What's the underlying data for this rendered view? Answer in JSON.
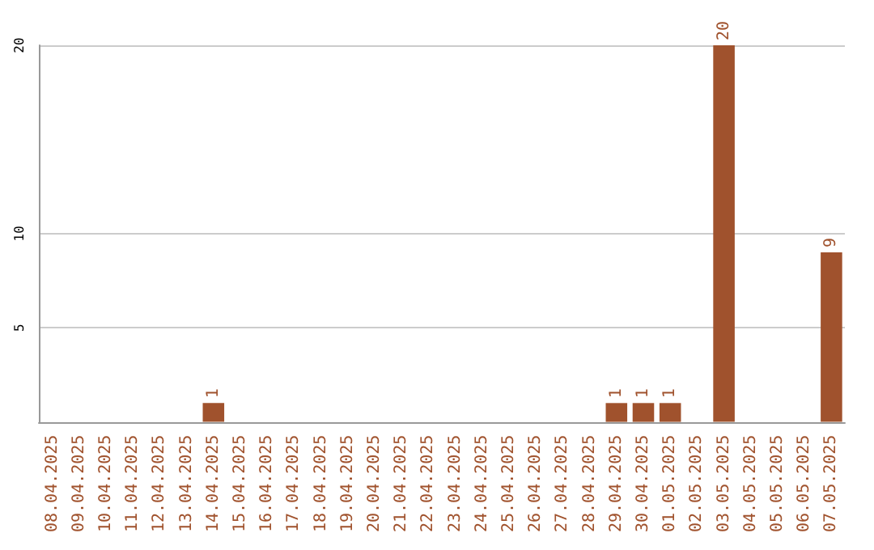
{
  "chart_data": {
    "type": "bar",
    "categories": [
      "08.04.2025",
      "09.04.2025",
      "10.04.2025",
      "11.04.2025",
      "12.04.2025",
      "13.04.2025",
      "14.04.2025",
      "15.04.2025",
      "16.04.2025",
      "17.04.2025",
      "18.04.2025",
      "19.04.2025",
      "20.04.2025",
      "21.04.2025",
      "22.04.2025",
      "23.04.2025",
      "24.04.2025",
      "25.04.2025",
      "26.04.2025",
      "27.04.2025",
      "28.04.2025",
      "29.04.2025",
      "30.04.2025",
      "01.05.2025",
      "02.05.2025",
      "03.05.2025",
      "04.05.2025",
      "05.05.2025",
      "06.05.2025",
      "07.05.2025"
    ],
    "values": [
      0,
      0,
      0,
      0,
      0,
      0,
      1,
      0,
      0,
      0,
      0,
      0,
      0,
      0,
      0,
      0,
      0,
      0,
      0,
      0,
      0,
      1,
      1,
      1,
      0,
      20,
      0,
      0,
      0,
      9
    ],
    "value_labels": [
      null,
      null,
      null,
      null,
      null,
      null,
      "1",
      null,
      null,
      null,
      null,
      null,
      null,
      null,
      null,
      null,
      null,
      null,
      null,
      null,
      null,
      "1",
      "1",
      "1",
      null,
      "20",
      null,
      null,
      null,
      "9"
    ],
    "color": "#a0522d",
    "ylim": [
      0,
      20
    ],
    "yticks": [
      5,
      10,
      20
    ],
    "grid": "y"
  }
}
